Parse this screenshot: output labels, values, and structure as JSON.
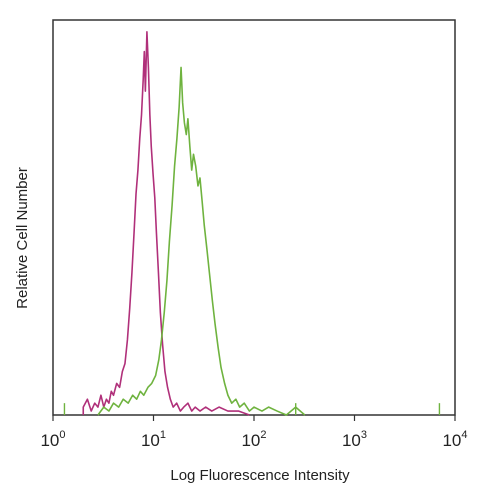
{
  "chart_data": {
    "type": "histogram",
    "title": "",
    "xlabel": "Log Fluorescence Intensity",
    "ylabel": "Relative Cell Number",
    "x_scale": "log",
    "xlim": [
      1,
      10000
    ],
    "ylim": [
      0,
      100
    ],
    "x_ticks": [
      {
        "base": "10",
        "exp": "0",
        "value": 1
      },
      {
        "base": "10",
        "exp": "1",
        "value": 10
      },
      {
        "base": "10",
        "exp": "2",
        "value": 100
      },
      {
        "base": "10",
        "exp": "3",
        "value": 1000
      },
      {
        "base": "10",
        "exp": "4",
        "value": 10000
      }
    ],
    "grid": false,
    "legend": "none",
    "series": [
      {
        "color": "#b0307a",
        "points": [
          [
            2.0,
            2
          ],
          [
            2.2,
            4
          ],
          [
            2.4,
            1
          ],
          [
            2.6,
            3
          ],
          [
            2.8,
            2
          ],
          [
            3.0,
            5
          ],
          [
            3.2,
            2
          ],
          [
            3.4,
            4
          ],
          [
            3.6,
            3
          ],
          [
            3.8,
            6
          ],
          [
            4.0,
            5
          ],
          [
            4.3,
            8
          ],
          [
            4.6,
            7
          ],
          [
            4.9,
            11
          ],
          [
            5.2,
            13
          ],
          [
            5.5,
            19
          ],
          [
            5.8,
            27
          ],
          [
            6.1,
            36
          ],
          [
            6.4,
            46
          ],
          [
            6.7,
            56
          ],
          [
            7.0,
            62
          ],
          [
            7.3,
            70
          ],
          [
            7.6,
            76
          ],
          [
            7.9,
            85
          ],
          [
            8.1,
            92
          ],
          [
            8.3,
            82
          ],
          [
            8.6,
            97
          ],
          [
            8.9,
            88
          ],
          [
            9.2,
            76
          ],
          [
            9.5,
            68
          ],
          [
            9.9,
            61
          ],
          [
            10.3,
            55
          ],
          [
            10.7,
            46
          ],
          [
            11.2,
            36
          ],
          [
            11.7,
            26
          ],
          [
            12.3,
            18
          ],
          [
            13.0,
            11
          ],
          [
            13.8,
            7
          ],
          [
            14.7,
            4
          ],
          [
            15.7,
            2
          ],
          [
            17.0,
            3
          ],
          [
            18.5,
            1
          ],
          [
            20.0,
            2
          ],
          [
            22.0,
            3
          ],
          [
            24.0,
            1
          ],
          [
            26.0,
            2
          ],
          [
            29.0,
            1
          ],
          [
            33.0,
            2
          ],
          [
            38.0,
            1
          ],
          [
            45.0,
            2
          ],
          [
            55.0,
            1
          ],
          [
            70.0,
            1
          ],
          [
            90.0,
            0
          ]
        ]
      },
      {
        "color": "#6fb33f",
        "points": [
          [
            2.8,
            0
          ],
          [
            3.2,
            2
          ],
          [
            3.6,
            1
          ],
          [
            4.0,
            3
          ],
          [
            4.5,
            2
          ],
          [
            5.0,
            4
          ],
          [
            5.6,
            3
          ],
          [
            6.2,
            5
          ],
          [
            6.8,
            4
          ],
          [
            7.4,
            6
          ],
          [
            8.0,
            5
          ],
          [
            8.8,
            7
          ],
          [
            9.6,
            8
          ],
          [
            10.5,
            10
          ],
          [
            11.3,
            14
          ],
          [
            12.0,
            19
          ],
          [
            12.8,
            26
          ],
          [
            13.6,
            34
          ],
          [
            14.4,
            44
          ],
          [
            15.3,
            53
          ],
          [
            16.2,
            63
          ],
          [
            17.1,
            70
          ],
          [
            18.0,
            78
          ],
          [
            18.8,
            88
          ],
          [
            19.5,
            79
          ],
          [
            20.3,
            74
          ],
          [
            21.2,
            71
          ],
          [
            22.0,
            75
          ],
          [
            23.0,
            68
          ],
          [
            24.0,
            62
          ],
          [
            25.0,
            66
          ],
          [
            26.3,
            63
          ],
          [
            27.7,
            58
          ],
          [
            29.0,
            60
          ],
          [
            30.5,
            54
          ],
          [
            32.0,
            48
          ],
          [
            34.0,
            42
          ],
          [
            36.0,
            36
          ],
          [
            38.5,
            29
          ],
          [
            41.0,
            23
          ],
          [
            44.0,
            17
          ],
          [
            47.0,
            12
          ],
          [
            51.0,
            8
          ],
          [
            55.0,
            5
          ],
          [
            60.0,
            3
          ],
          [
            66.0,
            4
          ],
          [
            72.0,
            2
          ],
          [
            80.0,
            3
          ],
          [
            90.0,
            1
          ],
          [
            100.0,
            2
          ],
          [
            120.0,
            1
          ],
          [
            140.0,
            2
          ],
          [
            170.0,
            1
          ],
          [
            210.0,
            0
          ],
          [
            260.0,
            2
          ],
          [
            320.0,
            0
          ]
        ]
      }
    ],
    "spikes": [
      {
        "x": 1.3,
        "y": 3
      },
      {
        "x": 260,
        "y": 3
      },
      {
        "x": 7000,
        "y": 3
      }
    ]
  }
}
